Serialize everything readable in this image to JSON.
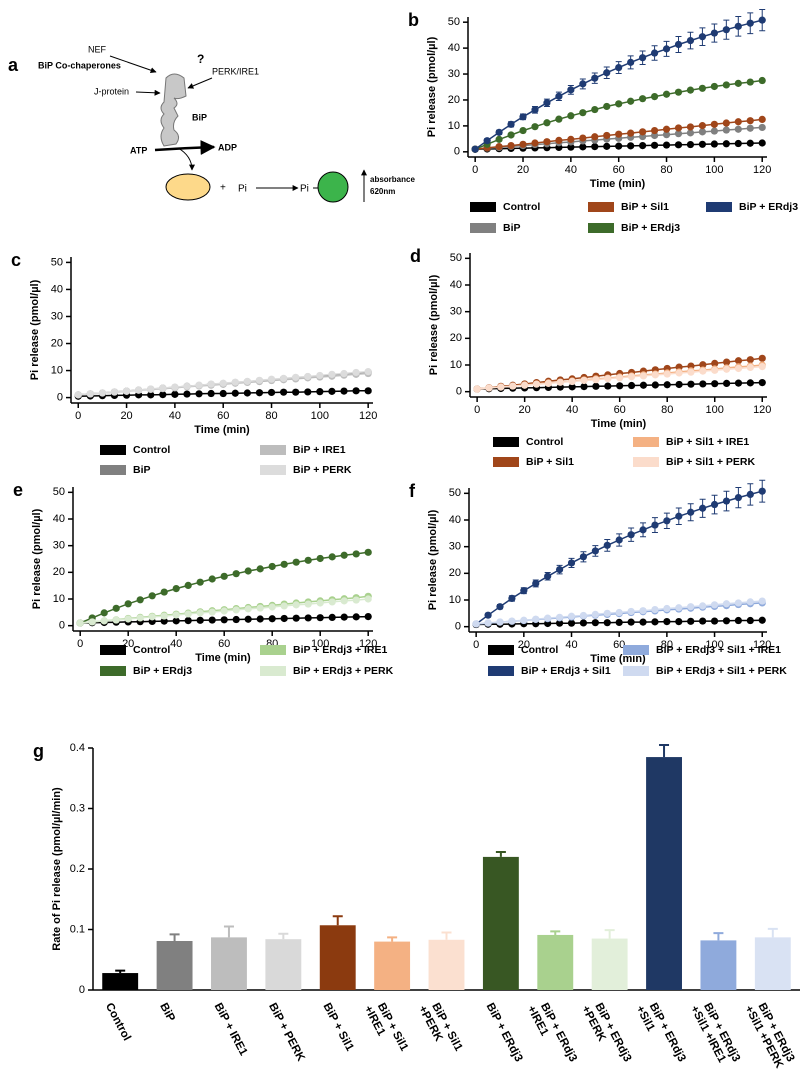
{
  "diagram": {
    "panel": "a",
    "title": "BiP Co-chaperones",
    "nef": "NEF",
    "jprotein": "J-protein",
    "question": "?",
    "sensors": "PERK/IRE1",
    "bip": "BiP",
    "atp": "ATP",
    "adp": "ADP",
    "plus": "+",
    "pi_free": "Pi",
    "pi_bound": "Pi",
    "readout": [
      "absorbance",
      "620nm"
    ]
  },
  "chart_data": [
    {
      "panel": "b",
      "type": "line",
      "xlabel": "Time (min)",
      "ylabel": "Pi release (pmol/µl)",
      "x": [
        0,
        5,
        10,
        15,
        20,
        25,
        30,
        35,
        40,
        45,
        50,
        55,
        60,
        65,
        70,
        75,
        80,
        85,
        90,
        95,
        100,
        105,
        110,
        115,
        120
      ],
      "xlim": [
        -3,
        122
      ],
      "ylim": [
        -2,
        52
      ],
      "xticks": [
        0,
        20,
        40,
        60,
        80,
        100,
        120
      ],
      "yticks": [
        0,
        10,
        20,
        30,
        40,
        50
      ],
      "series": [
        {
          "name": "Control",
          "color": "#000000",
          "values": [
            1.0,
            1.1,
            1.2,
            1.3,
            1.4,
            1.5,
            1.6,
            1.7,
            1.8,
            1.9,
            2.0,
            2.1,
            2.2,
            2.3,
            2.4,
            2.5,
            2.6,
            2.7,
            2.8,
            2.9,
            3.0,
            3.1,
            3.2,
            3.3,
            3.4
          ]
        },
        {
          "name": "BiP",
          "color": "#808080",
          "values": [
            1.0,
            1.4,
            1.7,
            2.1,
            2.4,
            2.8,
            3.1,
            3.5,
            3.8,
            4.2,
            4.5,
            4.9,
            5.2,
            5.6,
            5.9,
            6.3,
            6.6,
            7.0,
            7.3,
            7.7,
            8.0,
            8.4,
            8.7,
            9.1,
            9.4
          ]
        },
        {
          "name": "BiP + Sil1",
          "color": "#a0461a",
          "values": [
            1.0,
            1.5,
            2.0,
            2.4,
            2.9,
            3.4,
            3.9,
            4.4,
            4.8,
            5.3,
            5.8,
            6.3,
            6.8,
            7.2,
            7.7,
            8.2,
            8.7,
            9.2,
            9.6,
            10.1,
            10.6,
            11.1,
            11.6,
            12.0,
            12.5
          ]
        },
        {
          "name": "BiP + ERdj3",
          "color": "#3d6b2a",
          "values": [
            1.0,
            2.9,
            4.8,
            6.5,
            8.2,
            9.7,
            11.2,
            12.6,
            13.9,
            15.1,
            16.3,
            17.5,
            18.5,
            19.5,
            20.5,
            21.3,
            22.2,
            23.0,
            23.8,
            24.5,
            25.2,
            25.8,
            26.4,
            26.9,
            27.5
          ]
        },
        {
          "name": "BiP + ERdj3 + Sil1",
          "color": "#1f3b73",
          "values": [
            1.0,
            4.3,
            7.5,
            10.6,
            13.5,
            16.2,
            18.9,
            21.4,
            23.9,
            26.2,
            28.4,
            30.5,
            32.5,
            34.5,
            36.3,
            38.1,
            39.7,
            41.4,
            42.9,
            44.4,
            45.8,
            47.1,
            48.4,
            49.6,
            50.8
          ],
          "errors": [
            0.5,
            0.7,
            0.8,
            1.0,
            1.1,
            1.3,
            1.4,
            1.6,
            1.7,
            1.9,
            2.0,
            2.2,
            2.3,
            2.5,
            2.6,
            2.8,
            2.9,
            3.1,
            3.2,
            3.4,
            3.5,
            3.7,
            3.8,
            4.0,
            4.1
          ]
        }
      ]
    },
    {
      "panel": "c",
      "type": "line",
      "xlabel": "Time (min)",
      "ylabel": "Pi release (pmol/µl)",
      "x": [
        0,
        5,
        10,
        15,
        20,
        25,
        30,
        35,
        40,
        45,
        50,
        55,
        60,
        65,
        70,
        75,
        80,
        85,
        90,
        95,
        100,
        105,
        110,
        115,
        120
      ],
      "xlim": [
        -3,
        122
      ],
      "ylim": [
        -2,
        52
      ],
      "xticks": [
        0,
        20,
        40,
        60,
        80,
        100,
        120
      ],
      "yticks": [
        0,
        10,
        20,
        30,
        40,
        50
      ],
      "series": [
        {
          "name": "Control",
          "color": "#000000",
          "values": [
            0.5,
            0.6,
            0.7,
            0.8,
            0.9,
            1.0,
            1.0,
            1.1,
            1.2,
            1.3,
            1.4,
            1.5,
            1.5,
            1.6,
            1.7,
            1.8,
            1.9,
            2.0,
            2.0,
            2.1,
            2.2,
            2.3,
            2.4,
            2.5,
            2.5
          ]
        },
        {
          "name": "BiP",
          "color": "#808080",
          "values": [
            1.0,
            1.4,
            1.7,
            2.1,
            2.4,
            2.8,
            3.1,
            3.5,
            3.8,
            4.2,
            4.5,
            4.9,
            5.2,
            5.6,
            5.9,
            6.3,
            6.6,
            7.0,
            7.3,
            7.7,
            8.0,
            8.4,
            8.7,
            9.1,
            9.4
          ]
        },
        {
          "name": "BiP + IRE1",
          "color": "#bdbdbd",
          "values": [
            1.0,
            1.3,
            1.7,
            2.0,
            2.3,
            2.7,
            3.0,
            3.3,
            3.6,
            4.0,
            4.3,
            4.6,
            4.9,
            5.3,
            5.6,
            5.9,
            6.3,
            6.6,
            6.9,
            7.3,
            7.6,
            7.9,
            8.3,
            8.6,
            8.9
          ]
        },
        {
          "name": "BiP + PERK",
          "color": "#dcdcdc",
          "values": [
            1.0,
            1.4,
            1.7,
            2.1,
            2.4,
            2.8,
            3.2,
            3.5,
            3.9,
            4.2,
            4.6,
            5.0,
            5.3,
            5.7,
            6.0,
            6.4,
            6.8,
            7.1,
            7.5,
            7.8,
            8.2,
            8.6,
            8.9,
            9.3,
            9.6
          ]
        }
      ]
    },
    {
      "panel": "d",
      "type": "line",
      "xlabel": "Time (min)",
      "ylabel": "Pi release (pmol/µl)",
      "x": [
        0,
        5,
        10,
        15,
        20,
        25,
        30,
        35,
        40,
        45,
        50,
        55,
        60,
        65,
        70,
        75,
        80,
        85,
        90,
        95,
        100,
        105,
        110,
        115,
        120
      ],
      "xlim": [
        -3,
        122
      ],
      "ylim": [
        -2,
        52
      ],
      "xticks": [
        0,
        20,
        40,
        60,
        80,
        100,
        120
      ],
      "yticks": [
        0,
        10,
        20,
        30,
        40,
        50
      ],
      "series": [
        {
          "name": "Control",
          "color": "#000000",
          "values": [
            1.0,
            1.1,
            1.2,
            1.3,
            1.4,
            1.5,
            1.6,
            1.7,
            1.8,
            1.9,
            2.0,
            2.1,
            2.2,
            2.3,
            2.4,
            2.5,
            2.6,
            2.7,
            2.8,
            2.9,
            3.0,
            3.1,
            3.2,
            3.3,
            3.4
          ]
        },
        {
          "name": "BiP + Sil1",
          "color": "#a0461a",
          "values": [
            1.0,
            1.5,
            2.0,
            2.4,
            2.9,
            3.4,
            3.9,
            4.4,
            4.8,
            5.3,
            5.8,
            6.3,
            6.8,
            7.2,
            7.7,
            8.2,
            8.7,
            9.2,
            9.6,
            10.1,
            10.6,
            11.1,
            11.6,
            12.0,
            12.5
          ]
        },
        {
          "name": "BiP + Sil1 + IRE1",
          "color": "#f4b183",
          "values": [
            1.0,
            1.4,
            1.8,
            2.1,
            2.5,
            2.9,
            3.3,
            3.6,
            4.0,
            4.4,
            4.8,
            5.1,
            5.5,
            5.9,
            6.3,
            6.6,
            7.0,
            7.4,
            7.8,
            8.1,
            8.5,
            8.9,
            9.3,
            9.6,
            10.0
          ]
        },
        {
          "name": "BiP + Sil1 + PERK",
          "color": "#fbdccb",
          "values": [
            1.0,
            1.4,
            1.7,
            2.1,
            2.4,
            2.8,
            3.1,
            3.5,
            3.8,
            4.2,
            4.5,
            4.9,
            5.2,
            5.6,
            5.9,
            6.3,
            6.6,
            7.0,
            7.3,
            7.7,
            8.0,
            8.4,
            8.7,
            9.1,
            9.4
          ]
        }
      ]
    },
    {
      "panel": "e",
      "type": "line",
      "xlabel": "Time (min)",
      "ylabel": "Pi release (pmol/µl)",
      "x": [
        0,
        5,
        10,
        15,
        20,
        25,
        30,
        35,
        40,
        45,
        50,
        55,
        60,
        65,
        70,
        75,
        80,
        85,
        90,
        95,
        100,
        105,
        110,
        115,
        120
      ],
      "xlim": [
        -3,
        122
      ],
      "ylim": [
        -2,
        52
      ],
      "xticks": [
        0,
        20,
        40,
        60,
        80,
        100,
        120
      ],
      "yticks": [
        0,
        10,
        20,
        30,
        40,
        50
      ],
      "series": [
        {
          "name": "Control",
          "color": "#000000",
          "values": [
            1.0,
            1.1,
            1.2,
            1.3,
            1.4,
            1.5,
            1.6,
            1.7,
            1.8,
            1.9,
            2.0,
            2.1,
            2.2,
            2.3,
            2.4,
            2.5,
            2.6,
            2.7,
            2.8,
            2.9,
            3.0,
            3.1,
            3.2,
            3.3,
            3.4
          ]
        },
        {
          "name": "BiP + ERdj3",
          "color": "#3d6b2a",
          "values": [
            1.0,
            2.9,
            4.8,
            6.5,
            8.2,
            9.7,
            11.2,
            12.6,
            13.9,
            15.1,
            16.3,
            17.5,
            18.5,
            19.5,
            20.5,
            21.3,
            22.2,
            23.0,
            23.8,
            24.5,
            25.2,
            25.8,
            26.4,
            26.9,
            27.5
          ]
        },
        {
          "name": "BiP + ERdj3 + IRE1",
          "color": "#a9d18e",
          "values": [
            1.0,
            1.4,
            1.8,
            2.2,
            2.7,
            3.1,
            3.5,
            3.9,
            4.3,
            4.7,
            5.2,
            5.6,
            6.0,
            6.4,
            6.8,
            7.2,
            7.6,
            8.1,
            8.5,
            8.9,
            9.3,
            9.7,
            10.1,
            10.5,
            11.0
          ]
        },
        {
          "name": "BiP + ERdj3 + PERK",
          "color": "#d9ead0",
          "values": [
            1.0,
            1.4,
            1.8,
            2.1,
            2.5,
            2.9,
            3.3,
            3.6,
            4.0,
            4.4,
            4.8,
            5.1,
            5.5,
            5.9,
            6.3,
            6.6,
            7.0,
            7.4,
            7.8,
            8.1,
            8.5,
            8.9,
            9.3,
            9.6,
            10.0
          ]
        }
      ]
    },
    {
      "panel": "f",
      "type": "line",
      "xlabel": "Time (min)",
      "ylabel": "Pi release (pmol/µl)",
      "x": [
        0,
        5,
        10,
        15,
        20,
        25,
        30,
        35,
        40,
        45,
        50,
        55,
        60,
        65,
        70,
        75,
        80,
        85,
        90,
        95,
        100,
        105,
        110,
        115,
        120
      ],
      "xlim": [
        -3,
        122
      ],
      "ylim": [
        -2,
        52
      ],
      "xticks": [
        0,
        20,
        40,
        60,
        80,
        100,
        120
      ],
      "yticks": [
        0,
        10,
        20,
        30,
        40,
        50
      ],
      "series": [
        {
          "name": "Control",
          "color": "#000000",
          "values": [
            0.8,
            0.9,
            0.9,
            1.0,
            1.1,
            1.1,
            1.2,
            1.3,
            1.3,
            1.4,
            1.5,
            1.5,
            1.6,
            1.7,
            1.7,
            1.8,
            1.9,
            1.9,
            2.0,
            2.1,
            2.1,
            2.2,
            2.3,
            2.3,
            2.4
          ]
        },
        {
          "name": "BiP + ERdj3 + Sil1",
          "color": "#1f3b73",
          "values": [
            1.0,
            4.3,
            7.5,
            10.6,
            13.5,
            16.2,
            18.9,
            21.4,
            23.9,
            26.2,
            28.4,
            30.5,
            32.5,
            34.5,
            36.3,
            38.1,
            39.7,
            41.4,
            42.9,
            44.4,
            45.8,
            47.1,
            48.4,
            49.6,
            50.8
          ],
          "errors": [
            0.5,
            0.7,
            0.8,
            1.0,
            1.1,
            1.3,
            1.4,
            1.6,
            1.7,
            1.9,
            2.0,
            2.2,
            2.3,
            2.5,
            2.6,
            2.8,
            2.9,
            3.1,
            3.2,
            3.4,
            3.5,
            3.7,
            3.8,
            4.0,
            4.1
          ]
        },
        {
          "name": "BiP + ERdj3 + Sil1 + IRE1",
          "color": "#8faadc",
          "values": [
            1.0,
            1.3,
            1.7,
            2.0,
            2.3,
            2.7,
            3.0,
            3.3,
            3.6,
            4.0,
            4.3,
            4.6,
            4.9,
            5.3,
            5.6,
            5.9,
            6.3,
            6.6,
            6.9,
            7.3,
            7.6,
            7.9,
            8.3,
            8.6,
            8.9
          ]
        },
        {
          "name": "BiP + ERdj3 + Sil1 + PERK",
          "color": "#cfdaf0",
          "values": [
            1.0,
            1.4,
            1.7,
            2.1,
            2.4,
            2.8,
            3.2,
            3.5,
            3.9,
            4.2,
            4.6,
            5.0,
            5.3,
            5.7,
            6.0,
            6.4,
            6.8,
            7.1,
            7.5,
            7.8,
            8.2,
            8.6,
            8.9,
            9.3,
            9.6
          ]
        }
      ]
    },
    {
      "panel": "g",
      "type": "bar",
      "ylabel": "Rate of Pi release (pmol/µl/min)",
      "categories": [
        [
          "Control"
        ],
        [
          "BiP"
        ],
        [
          "BiP + IRE1"
        ],
        [
          "BiP + PERK"
        ],
        [
          "BiP + Sil1"
        ],
        [
          "BiP + Sil1",
          "+IRE1"
        ],
        [
          "BiP + Sil1",
          "+PERK"
        ],
        [
          "BiP + ERdj3"
        ],
        [
          "BiP + ERdj3",
          "+IRE1"
        ],
        [
          "BiP + ERdj3",
          "+PERK"
        ],
        [
          "BiP + ERdj3",
          "+Sil1"
        ],
        [
          "BiP + ERdj3",
          "+Sil1 +IRE1"
        ],
        [
          "BiP + ERdj3",
          "+Sil1 +PERK"
        ]
      ],
      "values": [
        0.028,
        0.081,
        0.087,
        0.084,
        0.107,
        0.08,
        0.083,
        0.22,
        0.091,
        0.085,
        0.385,
        0.082,
        0.087
      ],
      "errors": [
        0.004,
        0.011,
        0.018,
        0.009,
        0.015,
        0.007,
        0.012,
        0.008,
        0.006,
        0.014,
        0.02,
        0.012,
        0.014
      ],
      "colors": [
        "#000000",
        "#808080",
        "#bdbdbd",
        "#d9d9d9",
        "#8b3a0f",
        "#f4b183",
        "#fbe0d0",
        "#385723",
        "#a9d18e",
        "#e2efda",
        "#1f3864",
        "#8faadc",
        "#d9e2f3"
      ],
      "ylim": [
        0,
        0.4
      ],
      "yticks": [
        0,
        0.1,
        0.2,
        0.3,
        0.4
      ]
    }
  ]
}
